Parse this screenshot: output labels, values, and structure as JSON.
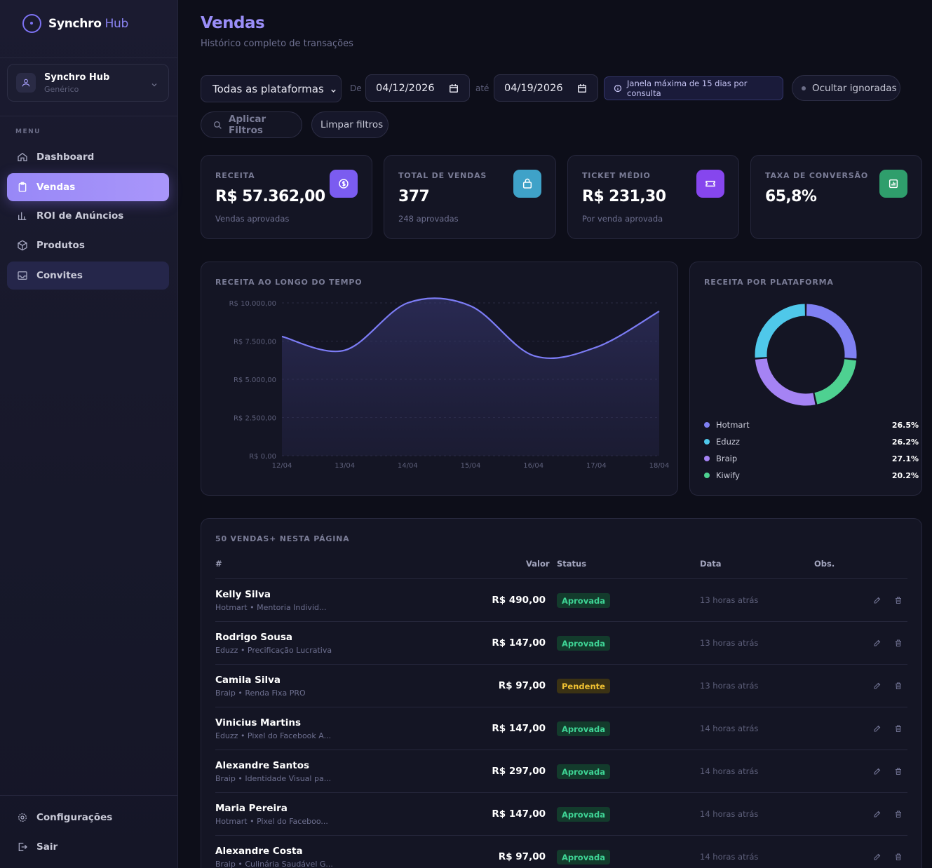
{
  "app": {
    "name": "Synchro",
    "name_accent": "Hub"
  },
  "workspace": {
    "name": "Synchro Hub",
    "type": "Genérico"
  },
  "sidebar": {
    "menu_label": "MENU",
    "items": [
      {
        "label": "Dashboard",
        "icon": "home-icon"
      },
      {
        "label": "Vendas",
        "icon": "clipboard-icon"
      },
      {
        "label": "ROI de Anúncios",
        "icon": "bar-chart-icon"
      },
      {
        "label": "Produtos",
        "icon": "box-icon"
      },
      {
        "label": "Convites",
        "icon": "inbox-icon"
      }
    ],
    "footer": [
      {
        "label": "Configurações",
        "icon": "gear-icon"
      },
      {
        "label": "Sair",
        "icon": "logout-icon"
      }
    ]
  },
  "header": {
    "title": "Vendas",
    "subtitle": "Histórico completo de transações"
  },
  "filters": {
    "platform": "Todas as plataformas",
    "from_label": "De",
    "from_date": "04/12/2026",
    "to_label": "até",
    "to_date": "04/19/2026",
    "info": "Janela máxima de 15 dias por consulta",
    "toggle_label": "Ocultar ignoradas",
    "apply_label": "Aplicar Filtros",
    "clear_label": "Limpar filtros"
  },
  "stats": [
    {
      "label": "RECEITA",
      "value": "R$ 57.362,00",
      "sub": "Vendas aprovadas",
      "icon": "dollar-icon",
      "color": "#7b5cf0"
    },
    {
      "label": "TOTAL DE VENDAS",
      "value": "377",
      "sub": "248 aprovadas",
      "icon": "shopping-bag-icon",
      "color": "#3fa2c8"
    },
    {
      "label": "TICKET MÉDIO",
      "value": "R$ 231,30",
      "sub": "Por venda aprovada",
      "icon": "ticket-icon",
      "color": "#8646ee"
    },
    {
      "label": "TAXA DE CONVERSÃO",
      "value": "65,8%",
      "sub": "",
      "icon": "bar-chart-icon",
      "color": "#2f9e6c"
    }
  ],
  "chart_data": [
    {
      "type": "area",
      "title": "RECEITA AO LONGO DO TEMPO",
      "x": [
        "12/04",
        "13/04",
        "14/04",
        "15/04",
        "16/04",
        "17/04",
        "18/04"
      ],
      "yticks": [
        "R$ 10.000,00",
        "R$ 7.500,00",
        "R$ 5.000,00",
        "R$ 2.500,00",
        "R$ 0,00"
      ],
      "ylim": [
        0,
        10000
      ],
      "values": [
        7800,
        6900,
        10000,
        9800,
        6550,
        7100,
        9450
      ],
      "color": "#7c7cf5",
      "grid": true
    },
    {
      "type": "pie",
      "title": "RECEITA POR PLATAFORMA",
      "labels": [
        "Hotmart",
        "Eduzz",
        "Braip",
        "Kiwify"
      ],
      "values": [
        26.5,
        26.2,
        27.1,
        20.2
      ],
      "display": [
        "26.5%",
        "26.2%",
        "27.1%",
        "20.2%"
      ],
      "colors": [
        "#7f80f3",
        "#4fc8ea",
        "#a583f4",
        "#4ed191"
      ],
      "donut_order": [
        "Hotmart",
        "Kiwify",
        "Braip",
        "Eduzz"
      ]
    }
  ],
  "table": {
    "title": "50 VENDAS+ NESTA PÁGINA",
    "columns": [
      "#",
      "Valor",
      "Status",
      "Data",
      "Obs."
    ],
    "rows": [
      {
        "name": "Kelly Silva",
        "meta": "Hotmart • Mentoria Individ...",
        "valor": "R$ 490,00",
        "status": "Aprovada",
        "kind": "ok",
        "data": "13 horas atrás"
      },
      {
        "name": "Rodrigo Sousa",
        "meta": "Eduzz • Precificação Lucrativa",
        "valor": "R$ 147,00",
        "status": "Aprovada",
        "kind": "ok",
        "data": "13 horas atrás"
      },
      {
        "name": "Camila Silva",
        "meta": "Braip • Renda Fixa PRO",
        "valor": "R$ 97,00",
        "status": "Pendente",
        "kind": "pend",
        "data": "13 horas atrás"
      },
      {
        "name": "Vinicius Martins",
        "meta": "Eduzz • Pixel do Facebook A...",
        "valor": "R$ 147,00",
        "status": "Aprovada",
        "kind": "ok",
        "data": "14 horas atrás"
      },
      {
        "name": "Alexandre Santos",
        "meta": "Braip • Identidade Visual pa...",
        "valor": "R$ 297,00",
        "status": "Aprovada",
        "kind": "ok",
        "data": "14 horas atrás"
      },
      {
        "name": "Maria Pereira",
        "meta": "Hotmart • Pixel do Faceboo...",
        "valor": "R$ 147,00",
        "status": "Aprovada",
        "kind": "ok",
        "data": "14 horas atrás"
      },
      {
        "name": "Alexandre Costa",
        "meta": "Braip • Culinária Saudável G...",
        "valor": "R$ 97,00",
        "status": "Aprovada",
        "kind": "ok",
        "data": "14 horas atrás"
      }
    ]
  }
}
